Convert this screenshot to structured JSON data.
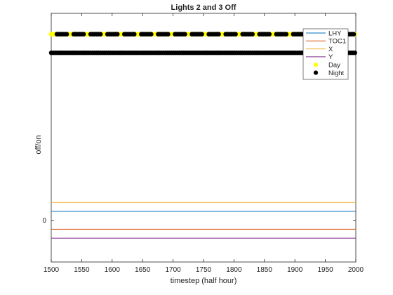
{
  "chart_data": {
    "type": "line",
    "title": "Lights 2 and 3 Off",
    "xlabel": "timestep (half hour)",
    "ylabel": "off/on",
    "xlim": [
      1500,
      2000
    ],
    "x_ticks": [
      1500,
      1550,
      1600,
      1650,
      1700,
      1750,
      1800,
      1850,
      1900,
      1950,
      2000
    ],
    "y_ticks": [
      0
    ],
    "ylim": [
      -0.56,
      2.78
    ],
    "grid": false,
    "legend_position": "top-right",
    "series": [
      {
        "name": "LHY",
        "x": [
          1500,
          2000
        ],
        "y": [
          0.12,
          0.12
        ],
        "color": "#0072bd",
        "style": "line"
      },
      {
        "name": "TOC1",
        "x": [
          1500,
          2000
        ],
        "y": [
          -0.12,
          -0.12
        ],
        "color": "#d95319",
        "style": "line"
      },
      {
        "name": "X",
        "x": [
          1500,
          2000
        ],
        "y": [
          0.24,
          0.24
        ],
        "color": "#edb120",
        "style": "line"
      },
      {
        "name": "Y",
        "x": [
          1500,
          2000
        ],
        "y": [
          -0.24,
          -0.24
        ],
        "color": "#7e2f8e",
        "style": "line"
      },
      {
        "name": "Day",
        "x": [
          1500,
          2000
        ],
        "y": [
          2.5,
          2.5
        ],
        "color": "#ffff00",
        "style": "dots"
      },
      {
        "name": "Night",
        "x": [
          1500,
          2000
        ],
        "y": [
          2.5,
          2.5
        ],
        "color": "#000000",
        "style": "dashed-dots"
      },
      {
        "name": "Night",
        "x": [
          1500,
          2000
        ],
        "y": [
          2.25,
          2.25
        ],
        "color": "#000000",
        "style": "dots"
      }
    ],
    "legend": [
      "LHY",
      "TOC1",
      "X",
      "Y",
      "Day",
      "Night"
    ]
  }
}
